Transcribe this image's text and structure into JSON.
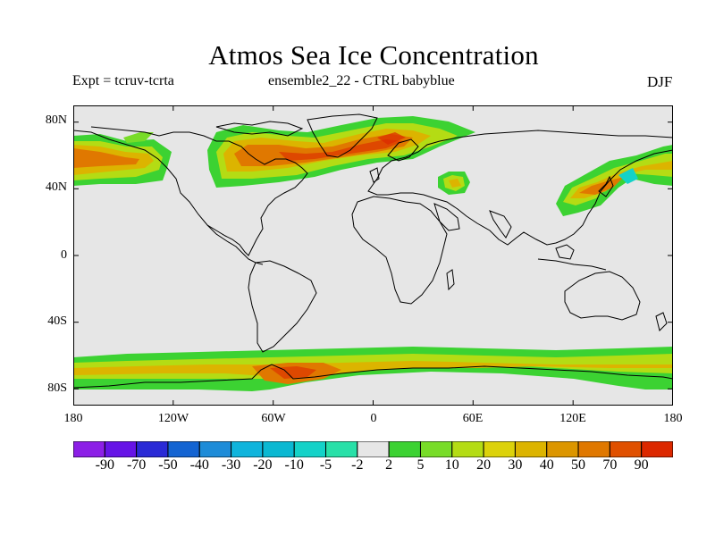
{
  "title": "Atmos Sea Ice Concentration",
  "subtitle_left": "Expt = tcruv-tcrta",
  "subtitle_center": "ensemble2_22 - CTRL babyblue",
  "season": "DJF",
  "map": {
    "projection": "cylindrical equidistant",
    "ocean_land_background": "#e6e6e6",
    "coastline_color": "#000000",
    "lat_range": [
      -90,
      90
    ],
    "lon_range": [
      -180,
      180
    ],
    "lat_labels": [
      "80N",
      "40N",
      "0",
      "40S",
      "80S"
    ],
    "lon_labels": [
      "180",
      "120W",
      "60W",
      "0",
      "60E",
      "120E",
      "180"
    ]
  },
  "colorbar": {
    "levels": [
      "-90",
      "-70",
      "-50",
      "-40",
      "-30",
      "-20",
      "-10",
      "-5",
      "-2",
      "2",
      "5",
      "10",
      "20",
      "30",
      "40",
      "50",
      "70",
      "90"
    ],
    "colors": [
      "#8c1fe6",
      "#6614e6",
      "#2a2ad6",
      "#1464d2",
      "#1e8cd8",
      "#0fb4dc",
      "#0ab8d2",
      "#14d2c8",
      "#28e0a8",
      "#e6e6e6",
      "#3cd232",
      "#78dc28",
      "#b4dc14",
      "#dcd20a",
      "#dcb400",
      "#dc9600",
      "#e07800",
      "#e05000",
      "#dc2800"
    ]
  }
}
